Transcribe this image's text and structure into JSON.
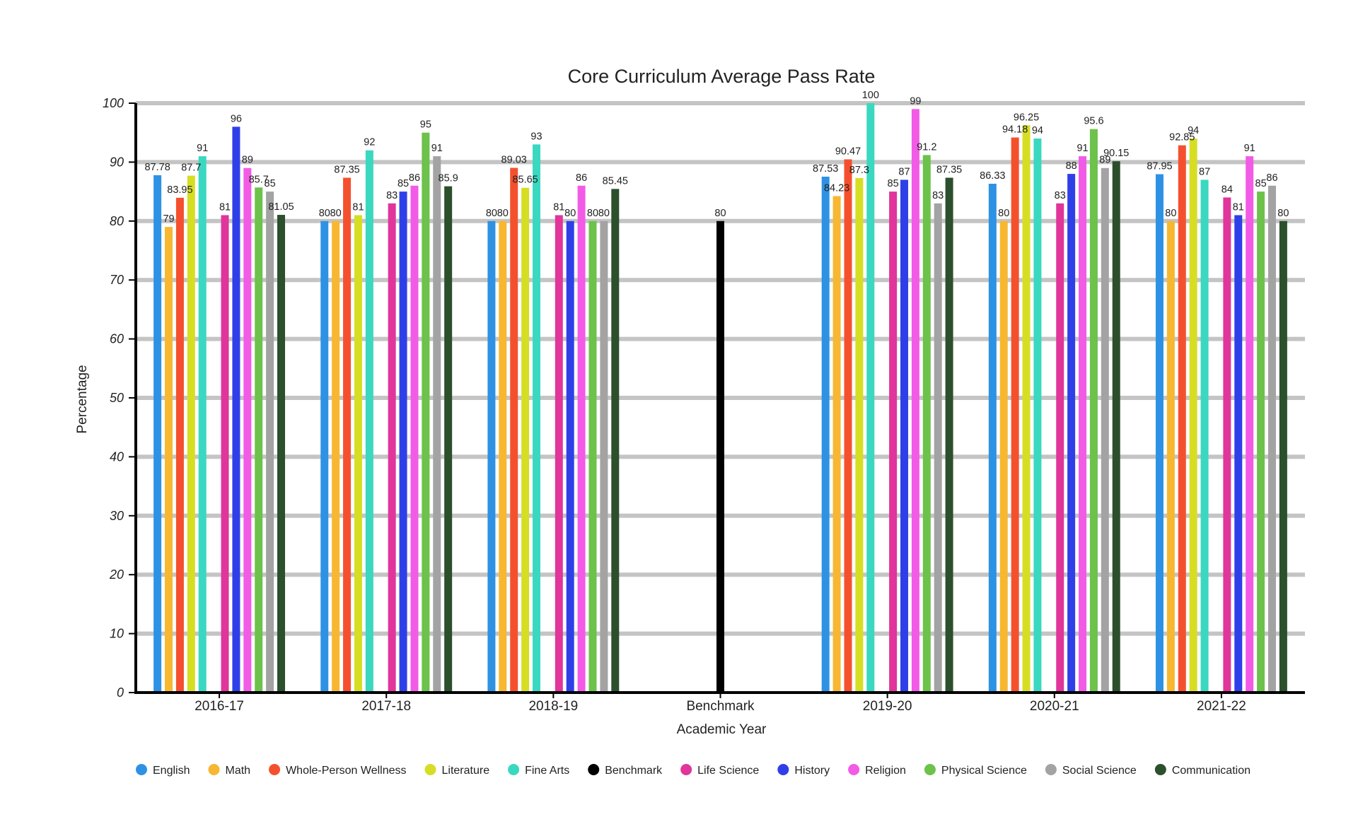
{
  "chart_data": {
    "type": "bar",
    "title": "Core Curriculum Average Pass Rate",
    "xlabel": "Academic Year",
    "ylabel": "Percentage",
    "ylim": [
      0,
      100
    ],
    "yticks": [
      0,
      10,
      20,
      30,
      40,
      50,
      60,
      70,
      80,
      90,
      100
    ],
    "grid": true,
    "legend_position": "bottom",
    "categories": [
      "2016-17",
      "2017-18",
      "2018-19",
      "Benchmark",
      "2019-20",
      "2020-21",
      "2021-22"
    ],
    "series": [
      {
        "name": "English",
        "color": "#2E92E4",
        "values": [
          87.78,
          80,
          80,
          null,
          87.53,
          86.33,
          87.95
        ],
        "labels": [
          "87.78",
          "80",
          "80",
          null,
          "87.53",
          "86.33",
          "87.95"
        ]
      },
      {
        "name": "Math",
        "color": "#F7B731",
        "values": [
          79,
          80,
          80,
          null,
          84.23,
          80,
          80
        ],
        "labels": [
          "79",
          "80",
          "80",
          null,
          "84.23",
          "80",
          "80"
        ]
      },
      {
        "name": "Whole-Person Wellness",
        "color": "#F5502E",
        "values": [
          83.95,
          87.35,
          89.03,
          null,
          90.47,
          94.18,
          92.85
        ],
        "labels": [
          "83.95",
          "87.35",
          "89.03",
          null,
          "90.47",
          "94.18",
          "92.85"
        ]
      },
      {
        "name": "Literature",
        "color": "#D6DE23",
        "values": [
          87.7,
          81,
          85.65,
          null,
          87.3,
          96.25,
          94
        ],
        "labels": [
          "87.7",
          "81",
          "85.65",
          null,
          "87.3",
          "96.25",
          "94"
        ]
      },
      {
        "name": "Fine Arts",
        "color": "#3AD8C0",
        "values": [
          91,
          92,
          93,
          null,
          100,
          94,
          87
        ],
        "labels": [
          "91",
          "92",
          "93",
          null,
          "100",
          "94",
          "87"
        ]
      },
      {
        "name": "Benchmark",
        "color": "#000000",
        "values": [
          null,
          null,
          null,
          80,
          null,
          null,
          null
        ],
        "labels": [
          null,
          null,
          null,
          "80",
          null,
          null,
          null
        ]
      },
      {
        "name": "Life Science",
        "color": "#E0359B",
        "values": [
          81,
          83,
          81,
          null,
          85,
          83,
          84
        ],
        "labels": [
          "81",
          "83",
          "81",
          null,
          "85",
          "83",
          "84"
        ]
      },
      {
        "name": "History",
        "color": "#2F3FE8",
        "values": [
          96,
          85,
          80,
          null,
          87,
          88,
          81
        ],
        "labels": [
          "96",
          "85",
          "80",
          null,
          "87",
          "88",
          "81"
        ]
      },
      {
        "name": "Religion",
        "color": "#F25BE6",
        "values": [
          89,
          86,
          86,
          null,
          99,
          91,
          91
        ],
        "labels": [
          "89",
          "86",
          "86",
          null,
          "99",
          "91",
          "91"
        ]
      },
      {
        "name": "Physical Science",
        "color": "#6CC24A",
        "values": [
          85.7,
          95,
          80,
          null,
          91.2,
          95.6,
          85
        ],
        "labels": [
          "85.7",
          "95",
          "80",
          null,
          "91.2",
          "95.6",
          "85"
        ]
      },
      {
        "name": "Social Science",
        "color": "#A3A3A3",
        "values": [
          85,
          91,
          80,
          null,
          83,
          89,
          86
        ],
        "labels": [
          "85",
          "91",
          "80",
          null,
          "83",
          "89",
          "86"
        ]
      },
      {
        "name": "Communication",
        "color": "#2C4F2C",
        "values": [
          81.05,
          85.9,
          85.45,
          null,
          87.35,
          90.15,
          80
        ],
        "labels": [
          "81.05",
          "85.9",
          "85.45",
          null,
          "87.35",
          "90.15",
          "80"
        ]
      }
    ]
  }
}
